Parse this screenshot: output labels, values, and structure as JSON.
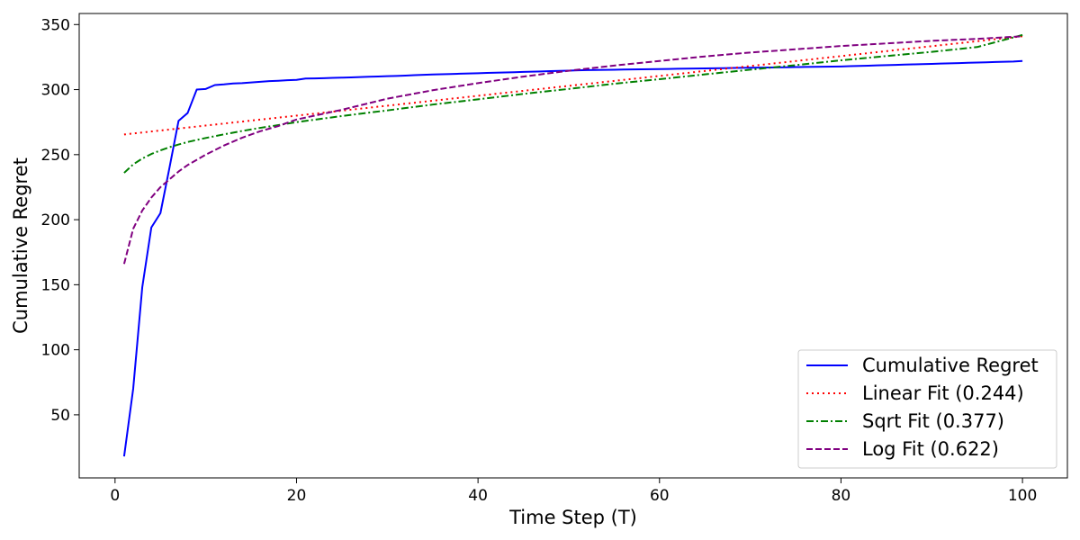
{
  "chart_data": {
    "type": "line",
    "title": "",
    "xlabel": "Time Step (T)",
    "ylabel": "Cumulative Regret",
    "xlim": [
      -3.95,
      104.95
    ],
    "ylim": [
      1.5,
      358.5
    ],
    "xticks": [
      0,
      20,
      40,
      60,
      80,
      100
    ],
    "yticks": [
      50,
      100,
      150,
      200,
      250,
      300,
      350
    ],
    "grid": false,
    "legend_position": "bottom-right",
    "series": [
      {
        "name": "Cumulative Regret",
        "style": "solid",
        "color": "#0000ff",
        "x": [
          1,
          2,
          3,
          4,
          5,
          6,
          7,
          8,
          9,
          10,
          11,
          12,
          13,
          14,
          15,
          16,
          17,
          18,
          19,
          20,
          21,
          22,
          23,
          24,
          25,
          26,
          27,
          28,
          29,
          30,
          31,
          32,
          33,
          34,
          35,
          36,
          37,
          38,
          39,
          40,
          41,
          42,
          43,
          44,
          45,
          46,
          47,
          48,
          49,
          50,
          51,
          52,
          53,
          54,
          55,
          56,
          57,
          58,
          59,
          60,
          61,
          62,
          63,
          64,
          65,
          66,
          67,
          68,
          69,
          70,
          71,
          72,
          73,
          74,
          75,
          76,
          77,
          78,
          79,
          80,
          81,
          82,
          83,
          84,
          85,
          86,
          87,
          88,
          89,
          90,
          91,
          92,
          93,
          94,
          95,
          96,
          97,
          98,
          99,
          100
        ],
        "y": [
          18,
          70,
          148,
          194,
          205,
          240,
          276,
          282,
          300,
          300.5,
          303.5,
          304,
          304.7,
          305,
          305.5,
          306,
          306.5,
          306.8,
          307.2,
          307.5,
          308.5,
          308.6,
          308.8,
          309,
          309.2,
          309.4,
          309.6,
          309.9,
          310.1,
          310.3,
          310.5,
          310.8,
          311.1,
          311.4,
          311.6,
          311.8,
          312,
          312.2,
          312.4,
          312.6,
          312.8,
          313,
          313.2,
          313.4,
          313.6,
          313.8,
          314,
          314.2,
          314.4,
          314.6,
          314.8,
          315,
          315.1,
          315.2,
          315.3,
          315.4,
          315.5,
          315.6,
          315.7,
          315.8,
          315.9,
          316,
          316.1,
          316.2,
          316.3,
          316.4,
          316.5,
          316.6,
          316.7,
          316.8,
          316.9,
          317,
          317.1,
          317.2,
          317.3,
          317.4,
          317.5,
          317.6,
          317.7,
          317.8,
          318,
          318.2,
          318.4,
          318.6,
          318.8,
          319,
          319.2,
          319.4,
          319.6,
          319.8,
          320,
          320.2,
          320.4,
          320.6,
          320.8,
          321,
          321.2,
          321.4,
          321.6,
          322
        ]
      },
      {
        "name": "Linear Fit (0.244)",
        "style": "dotted",
        "color": "#ff0000",
        "x": [
          1,
          100
        ],
        "y": [
          265.5,
          341
        ]
      },
      {
        "name": "Sqrt Fit (0.377)",
        "style": "dashdot",
        "color": "#008000",
        "x": [
          1,
          2,
          3,
          4,
          5,
          6,
          7,
          8,
          9,
          10,
          12,
          14,
          16,
          18,
          20,
          25,
          30,
          35,
          40,
          45,
          50,
          55,
          60,
          65,
          70,
          75,
          80,
          85,
          90,
          95,
          100
        ],
        "y": [
          236,
          242.5,
          247,
          250.5,
          253.3,
          255.7,
          257.8,
          259.7,
          261.3,
          262.8,
          265.6,
          268.2,
          270.6,
          272.7,
          275,
          279.7,
          284,
          288.5,
          292.5,
          296.7,
          300.5,
          304.5,
          308,
          311.7,
          315.3,
          318.8,
          322.5,
          325.8,
          329,
          332.7,
          342
        ]
      },
      {
        "name": "Log Fit (0.622)",
        "style": "dashed",
        "color": "#800080",
        "x": [
          1,
          2,
          3,
          4,
          5,
          6,
          7,
          8,
          9,
          10,
          12,
          14,
          16,
          18,
          20,
          25,
          30,
          35,
          40,
          45,
          50,
          55,
          60,
          65,
          70,
          75,
          80,
          85,
          90,
          95,
          100
        ],
        "y": [
          166,
          193,
          207,
          217,
          225,
          231,
          237,
          242,
          246,
          250,
          257,
          263,
          268,
          272,
          277,
          284.5,
          293,
          299.5,
          305,
          310,
          314.5,
          318.5,
          322,
          325.5,
          328.5,
          331,
          333.5,
          335.5,
          337.5,
          339,
          341
        ]
      }
    ]
  }
}
